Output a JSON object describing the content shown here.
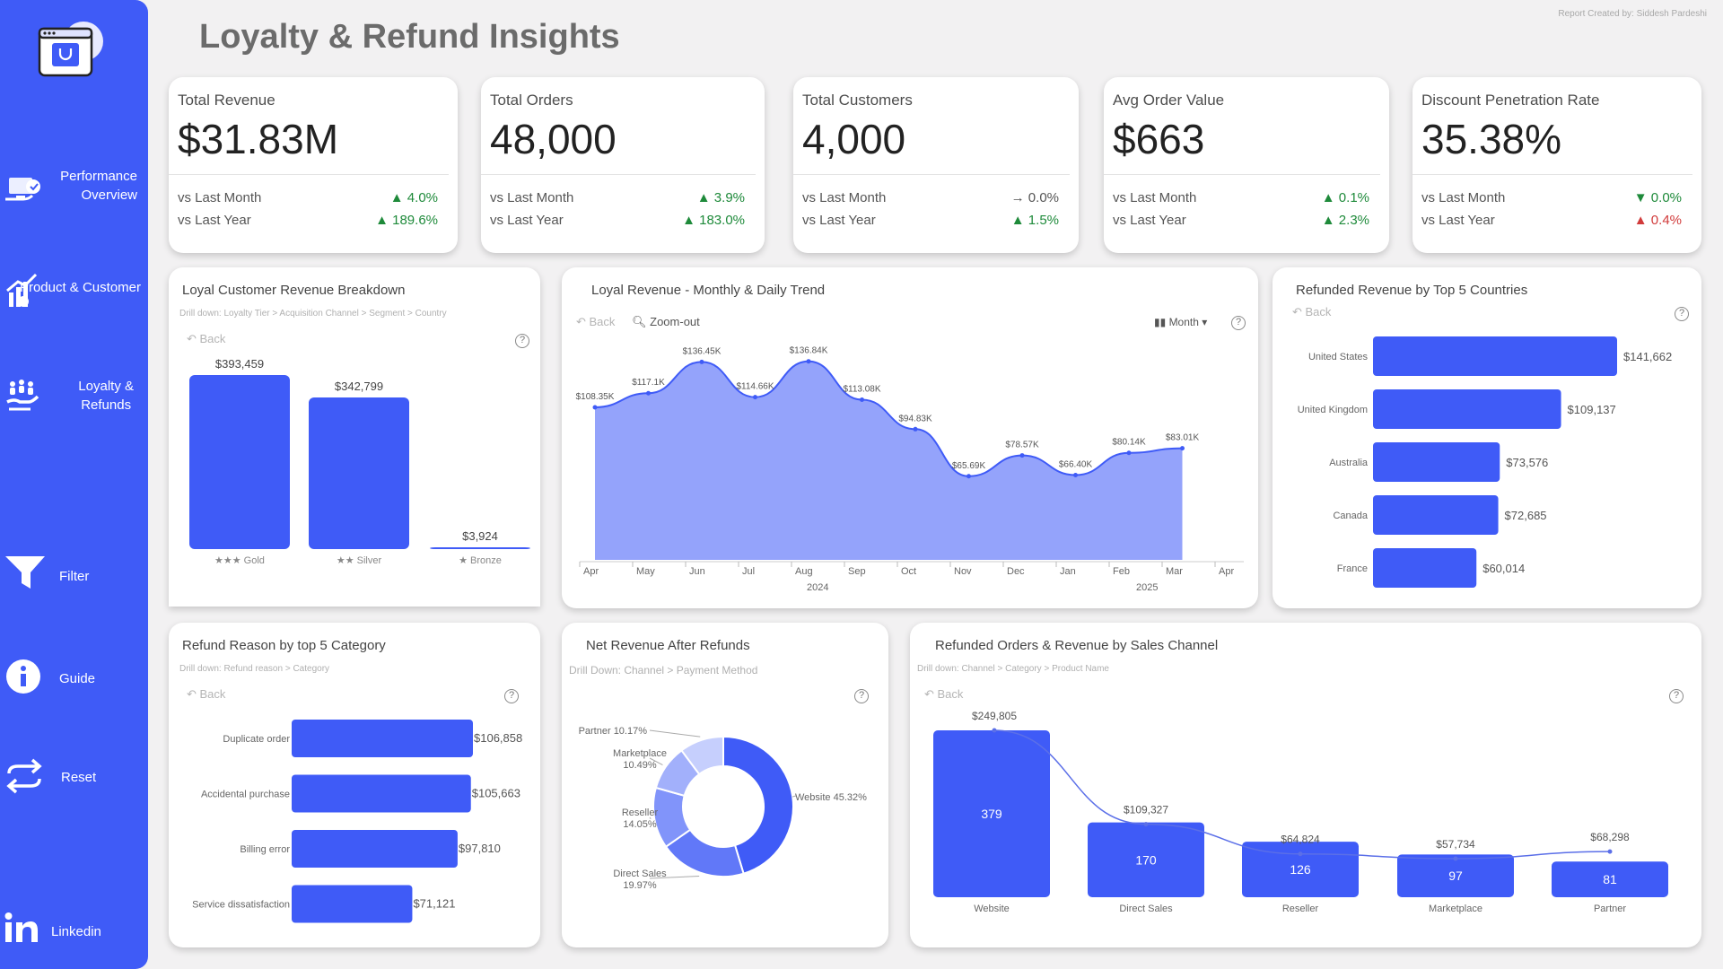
{
  "header": {
    "title": "Loyalty & Refund Insights",
    "credit": "Report Created by: Siddesh Pardeshi"
  },
  "sidebar": {
    "items": [
      {
        "label_lines": [
          "Performance",
          "Overview"
        ],
        "icon": "monitor-icon"
      },
      {
        "label_lines": [
          "Product & Customer"
        ],
        "icon": "chart-growth-icon"
      },
      {
        "label_lines": [
          "Loyalty &",
          "Refunds"
        ],
        "icon": "hand-people-icon"
      },
      {
        "label_lines": [
          "Filter"
        ],
        "icon": "filter-icon"
      },
      {
        "label_lines": [
          "Guide"
        ],
        "icon": "info-icon"
      },
      {
        "label_lines": [
          "Reset"
        ],
        "icon": "reset-icon"
      },
      {
        "label_lines": [
          "Linkedin"
        ],
        "icon": "linkedin-icon"
      }
    ]
  },
  "kpis": [
    {
      "title": "Total Revenue",
      "value": "$31.83M",
      "rows": [
        {
          "label": "vs Last Month",
          "delta": "▲ 4.0%"
        },
        {
          "label": "vs Last Year",
          "delta": "▲ 189.6%"
        }
      ]
    },
    {
      "title": "Total Orders",
      "value": "48,000",
      "rows": [
        {
          "label": "vs Last Month",
          "delta": "▲ 3.9%"
        },
        {
          "label": "vs Last Year",
          "delta": "▲ 183.0%"
        }
      ]
    },
    {
      "title": "Total Customers",
      "value": "4,000",
      "rows": [
        {
          "label": "vs Last Month",
          "delta": "→ 0.0%"
        },
        {
          "label": "vs Last Year",
          "delta": "▲ 1.5%"
        }
      ]
    },
    {
      "title": "Avg Order Value",
      "value": "$663",
      "rows": [
        {
          "label": "vs Last Month",
          "delta": "▲ 0.1%"
        },
        {
          "label": "vs Last Year",
          "delta": "▲ 2.3%"
        }
      ]
    },
    {
      "title": "Discount Penetration Rate",
      "value": "35.38%",
      "rows": [
        {
          "label": "vs Last Month",
          "delta": "▼ 0.0%"
        },
        {
          "label": "vs Last Year",
          "delta": "▲ 0.4%"
        }
      ]
    }
  ],
  "colors": {
    "primary": "#3f5bf7",
    "area": "#94a3fb",
    "up": "#1e8a3a",
    "down_bad": "#d13b3b"
  },
  "common": {
    "back": "Back",
    "zoom_out": "Zoom-out",
    "month_label": "Month"
  },
  "loyal_breakdown": {
    "title": "Loyal Customer Revenue Breakdown",
    "drill": "Drill down: Loyalty Tier > Acquisition Channel > Segment > Country"
  },
  "loyal_trend": {
    "title": "Loyal Revenue - Monthly & Daily Trend"
  },
  "refund_countries": {
    "title": "Refunded Revenue by Top 5 Countries"
  },
  "refund_reason": {
    "title": "Refund Reason by top 5 Category",
    "drill": "Drill down: Refund reason > Category"
  },
  "net_revenue": {
    "title": "Net Revenue After Refunds",
    "drill": "Drill Down: Channel > Payment Method"
  },
  "channel": {
    "title": "Refunded Orders & Revenue by Sales Channel",
    "drill": "Drill down: Channel > Category > Product Name"
  },
  "chart_data": [
    {
      "type": "bar",
      "id": "loyal_breakdown",
      "categories": [
        "Gold",
        "Silver",
        "Bronze"
      ],
      "stars": [
        3,
        2,
        1
      ],
      "values": [
        393459,
        342799,
        3924
      ],
      "labels": [
        "$393,459",
        "$342,799",
        "$3,924"
      ]
    },
    {
      "type": "area",
      "id": "loyal_trend",
      "x": [
        "Apr",
        "May",
        "Jun",
        "Jul",
        "Aug",
        "Sep",
        "Oct",
        "Nov",
        "Dec",
        "Jan",
        "Feb",
        "Mar"
      ],
      "axis_ticks": [
        "Apr",
        "May",
        "Jun",
        "Jul",
        "Aug",
        "Sep",
        "Oct",
        "Nov",
        "Dec",
        "Jan",
        "Feb",
        "Mar",
        "Apr"
      ],
      "year_labels": [
        "2024",
        "2025"
      ],
      "values": [
        108.35,
        117.1,
        136.45,
        114.66,
        136.84,
        113.08,
        94.83,
        65.69,
        78.57,
        66.4,
        80.14,
        83.01
      ],
      "labels": [
        "$108.35K",
        "$117.1K",
        "$136.45K",
        "$114.66K",
        "$136.84K",
        "$113.08K",
        "$94.83K",
        "$65.69K",
        "$78.57K",
        "$66.40K",
        "$80.14K",
        "$83.01K"
      ]
    },
    {
      "type": "bar",
      "id": "refund_countries",
      "orientation": "horizontal",
      "categories": [
        "United States",
        "United Kingdom",
        "Australia",
        "Canada",
        "France"
      ],
      "values": [
        141662,
        109137,
        73576,
        72685,
        60014
      ],
      "labels": [
        "$141,662",
        "$109,137",
        "$73,576",
        "$72,685",
        "$60,014"
      ]
    },
    {
      "type": "bar",
      "id": "refund_reason",
      "orientation": "horizontal",
      "categories": [
        "Duplicate order",
        "Accidental purchase",
        "Billing error",
        "Service dissatisfaction"
      ],
      "values": [
        106858,
        105663,
        97810,
        71121
      ],
      "labels": [
        "$106,858",
        "$105,663",
        "$97,810",
        "$71,121"
      ]
    },
    {
      "type": "pie",
      "id": "net_revenue",
      "donut": true,
      "categories": [
        "Website",
        "Direct Sales",
        "Reseller",
        "Marketplace",
        "Partner"
      ],
      "values": [
        45.32,
        19.97,
        14.05,
        10.49,
        10.17
      ],
      "labels": [
        "Website 45.32%",
        "Direct Sales 19.97%",
        "Reseller 14.05%",
        "Marketplace 10.49%",
        "Partner 10.17%"
      ],
      "colors": [
        "#3f5bf7",
        "#6178f8",
        "#8194fa",
        "#a2b0fb",
        "#c6cffd"
      ]
    },
    {
      "type": "bar",
      "id": "channel",
      "categories": [
        "Website",
        "Direct Sales",
        "Reseller",
        "Marketplace",
        "Partner"
      ],
      "orders": [
        379,
        170,
        126,
        97,
        81
      ],
      "revenue": [
        249805,
        109327,
        64824,
        57734,
        68298
      ],
      "revenue_labels": [
        "$249,805",
        "$109,327",
        "$64,824",
        "$57,734",
        "$68,298"
      ]
    }
  ]
}
